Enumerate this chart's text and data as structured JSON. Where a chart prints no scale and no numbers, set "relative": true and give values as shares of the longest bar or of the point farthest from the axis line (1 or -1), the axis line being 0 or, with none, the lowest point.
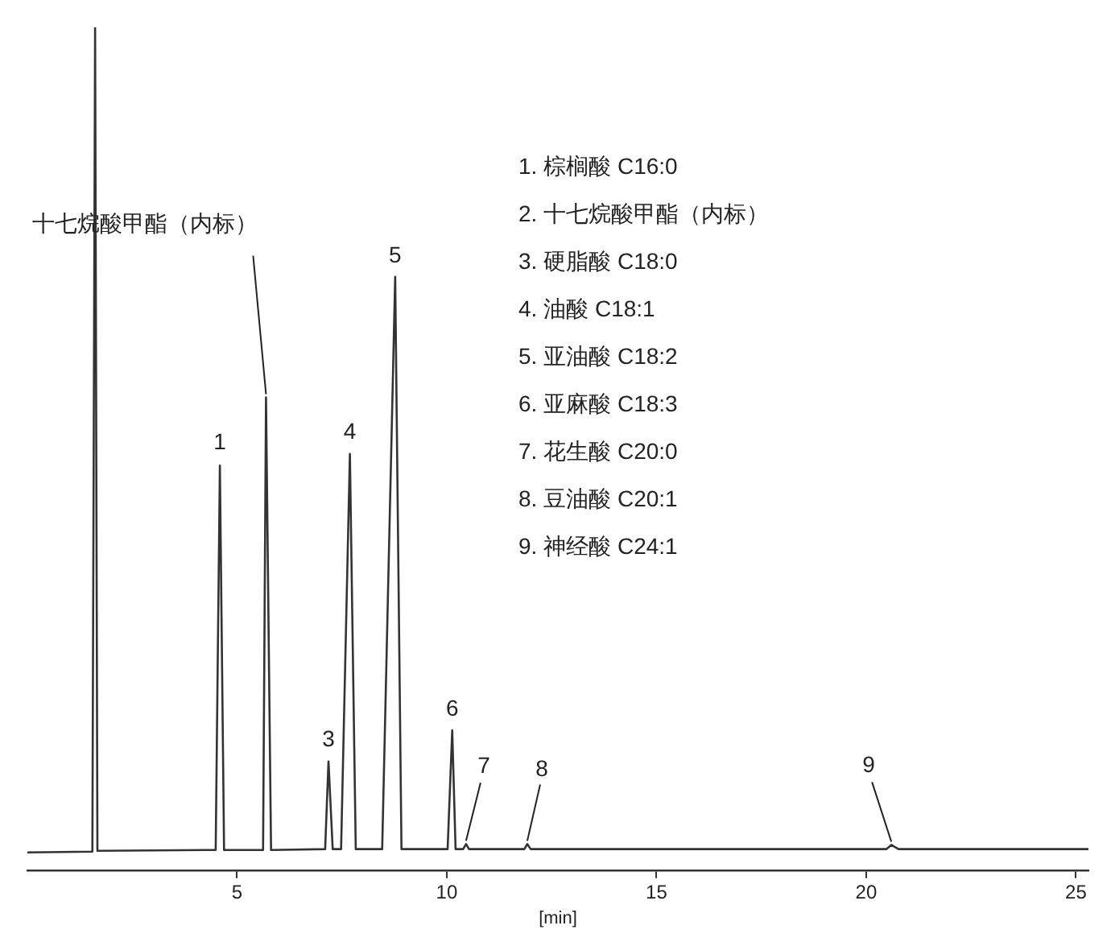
{
  "chart_data": {
    "type": "line",
    "relative": true,
    "xlabel": "[min]",
    "xlim": [
      0,
      25.3
    ],
    "xticks": [
      5,
      10,
      15,
      20,
      25
    ],
    "marker": "none",
    "color": "#333333",
    "x": [
      0,
      1.55,
      1.615,
      1.67,
      4.49,
      4.59,
      4.69,
      5.62,
      5.69,
      5.81,
      7.1,
      7.18,
      7.28,
      7.48,
      7.69,
      7.83,
      8.46,
      8.77,
      8.92,
      10.02,
      10.13,
      10.21,
      10.39,
      10.46,
      10.53,
      11.85,
      11.92,
      12.0,
      20.48,
      20.6,
      20.77,
      25.3
    ],
    "values": [
      0.021,
      0.022,
      1,
      0.023,
      0.024,
      0.48,
      0.024,
      0.024,
      0.561,
      0.024,
      0.025,
      0.129,
      0.025,
      0.025,
      0.494,
      0.025,
      0.025,
      0.704,
      0.025,
      0.025,
      0.166,
      0.025,
      0.025,
      0.031,
      0.025,
      0.025,
      0.031,
      0.025,
      0.025,
      0.03,
      0.025,
      0.025
    ],
    "annotations": [
      "1. 棕榈酸 C16:0",
      "2. 十七烷酸甲酯（内标）",
      "3. 硬脂酸 C18:0",
      "4. 油酸 C18:1",
      "5. 亚油酸 C18:2",
      "6. 亚麻酸 C18:3",
      "7. 花生酸 C20:0",
      "8. 豆油酸 C20:1",
      "9. 神经酸 C24:1",
      {
        "text": "十七烷酸甲酯（内标）",
        "x": 5.69,
        "y": 0.561
      },
      {
        "text": "1",
        "x": 4.59,
        "y": 0.48
      },
      {
        "text": "3",
        "x": 7.18,
        "y": 0.129
      },
      {
        "text": "4",
        "x": 7.69,
        "y": 0.494
      },
      {
        "text": "5",
        "x": 8.77,
        "y": 0.704
      },
      {
        "text": "6",
        "x": 10.13,
        "y": 0.166
      },
      {
        "text": "7",
        "x": 10.46,
        "y": 0.031
      },
      {
        "text": "8",
        "x": 11.92,
        "y": 0.031
      },
      {
        "text": "9",
        "x": 20.6,
        "y": 0.03
      }
    ]
  }
}
